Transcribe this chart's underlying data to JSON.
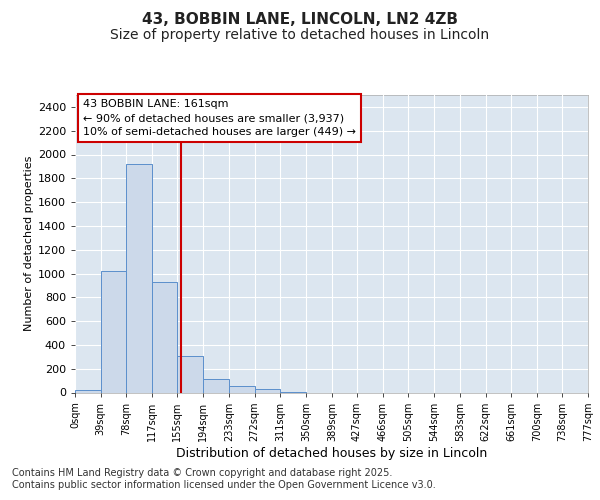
{
  "title_line1": "43, BOBBIN LANE, LINCOLN, LN2 4ZB",
  "title_line2": "Size of property relative to detached houses in Lincoln",
  "xlabel": "Distribution of detached houses by size in Lincoln",
  "ylabel": "Number of detached properties",
  "footer_line1": "Contains HM Land Registry data © Crown copyright and database right 2025.",
  "footer_line2": "Contains public sector information licensed under the Open Government Licence v3.0.",
  "annotation_line1": "43 BOBBIN LANE: 161sqm",
  "annotation_line2": "← 90% of detached houses are smaller (3,937)",
  "annotation_line3": "10% of semi-detached houses are larger (449) →",
  "bar_edges": [
    0,
    39,
    78,
    117,
    155,
    194,
    233,
    272,
    311,
    350,
    389,
    427,
    466,
    505,
    544,
    583,
    622,
    661,
    700,
    738,
    777
  ],
  "bar_labels": [
    "0sqm",
    "39sqm",
    "78sqm",
    "117sqm",
    "155sqm",
    "194sqm",
    "233sqm",
    "272sqm",
    "311sqm",
    "350sqm",
    "389sqm",
    "427sqm",
    "466sqm",
    "505sqm",
    "544sqm",
    "583sqm",
    "622sqm",
    "661sqm",
    "700sqm",
    "738sqm",
    "777sqm"
  ],
  "bar_values": [
    20,
    1025,
    1920,
    930,
    310,
    110,
    55,
    30,
    5,
    0,
    0,
    0,
    0,
    0,
    0,
    0,
    0,
    0,
    0,
    0
  ],
  "bar_color": "#ccd9ea",
  "bar_edge_color": "#5b8fcc",
  "red_line_x": 161,
  "ylim": [
    0,
    2500
  ],
  "yticks": [
    0,
    200,
    400,
    600,
    800,
    1000,
    1200,
    1400,
    1600,
    1800,
    2000,
    2200,
    2400
  ],
  "fig_bg_color": "#ffffff",
  "plot_bg_color": "#dce6f0",
  "grid_color": "#ffffff",
  "annotation_box_bg": "#ffffff",
  "annotation_box_edge": "#cc0000",
  "red_line_color": "#cc0000",
  "title1_fontsize": 11,
  "title2_fontsize": 10,
  "ylabel_fontsize": 8,
  "xlabel_fontsize": 9,
  "tick_fontsize": 8,
  "xtick_fontsize": 7,
  "footer_fontsize": 7,
  "ann_fontsize": 8
}
